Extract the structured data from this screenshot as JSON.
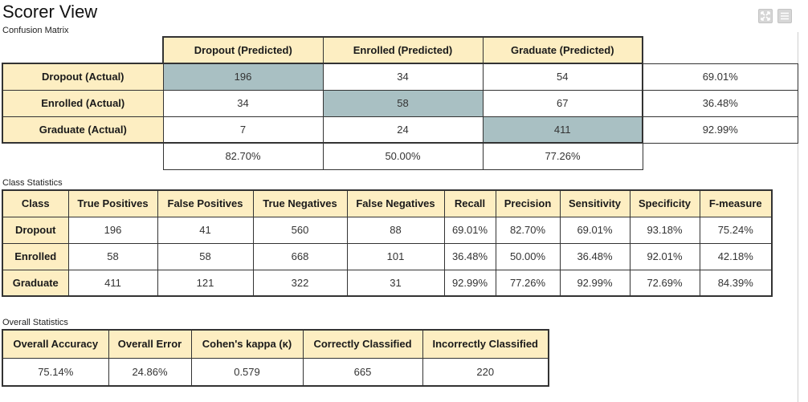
{
  "page": {
    "title": "Scorer View",
    "toolbar": {
      "expand_icon": "expand-icon",
      "menu_icon": "hamburger-menu-icon"
    }
  },
  "confusion": {
    "label": "Confusion Matrix",
    "col_headers": [
      "Dropout (Predicted)",
      "Enrolled (Predicted)",
      "Graduate (Predicted)"
    ],
    "rows": [
      {
        "label": "Dropout (Actual)",
        "cells": [
          "196",
          "34",
          "54"
        ],
        "rate": "69.01%"
      },
      {
        "label": "Enrolled (Actual)",
        "cells": [
          "34",
          "58",
          "67"
        ],
        "rate": "36.48%"
      },
      {
        "label": "Graduate (Actual)",
        "cells": [
          "7",
          "24",
          "411"
        ],
        "rate": "92.99%"
      }
    ],
    "col_rates": [
      "82.70%",
      "50.00%",
      "77.26%"
    ],
    "diagonal_color": "#a9c0c3",
    "header_color": "#fdeec2"
  },
  "class_stats": {
    "label": "Class Statistics",
    "headers": [
      "Class",
      "True Positives",
      "False Positives",
      "True Negatives",
      "False Negatives",
      "Recall",
      "Precision",
      "Sensitivity",
      "Specificity",
      "F-measure"
    ],
    "rows": [
      [
        "Dropout",
        "196",
        "41",
        "560",
        "88",
        "69.01%",
        "82.70%",
        "69.01%",
        "93.18%",
        "75.24%"
      ],
      [
        "Enrolled",
        "58",
        "58",
        "668",
        "101",
        "36.48%",
        "50.00%",
        "36.48%",
        "92.01%",
        "42.18%"
      ],
      [
        "Graduate",
        "411",
        "121",
        "322",
        "31",
        "92.99%",
        "77.26%",
        "92.99%",
        "72.69%",
        "84.39%"
      ]
    ]
  },
  "overall": {
    "label": "Overall Statistics",
    "headers": [
      "Overall Accuracy",
      "Overall Error",
      "Cohen's kappa (κ)",
      "Correctly Classified",
      "Incorrectly Classified"
    ],
    "values": [
      "75.14%",
      "24.86%",
      "0.579",
      "665",
      "220"
    ]
  }
}
